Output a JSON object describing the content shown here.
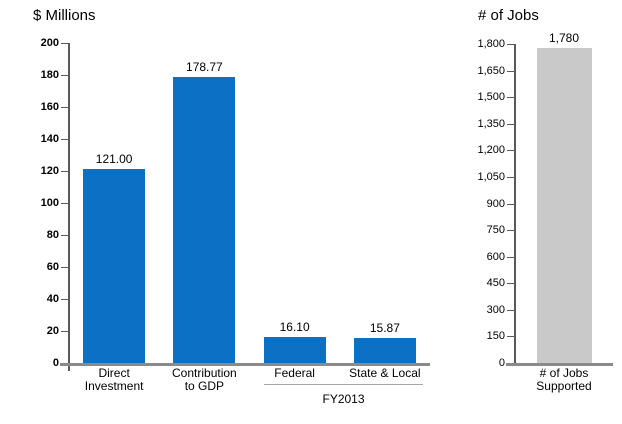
{
  "chart_data": [
    {
      "type": "bar",
      "title": "$ Millions",
      "categories": [
        [
          "Direct",
          "Investment"
        ],
        [
          "Contribution",
          "to GDP"
        ],
        [
          "Federal"
        ],
        [
          "State & Local"
        ]
      ],
      "values": [
        121.0,
        178.77,
        16.1,
        15.87
      ],
      "value_labels": [
        "121.00",
        "178.77",
        "16.10",
        "15.87"
      ],
      "ylim": [
        0,
        200
      ],
      "yticks": [
        0,
        20,
        40,
        60,
        80,
        100,
        120,
        140,
        160,
        180,
        200
      ],
      "ytick_labels": [
        "0",
        "20",
        "40",
        "60",
        "80",
        "100",
        "120",
        "140",
        "160",
        "180",
        "200"
      ],
      "bar_color": "#0c70c4",
      "grid": "off",
      "legend": "none",
      "x_group": {
        "label": "FY2013",
        "categories": [
          "Federal",
          "State & Local"
        ]
      }
    },
    {
      "type": "bar",
      "title": "# of Jobs",
      "categories": [
        [
          "# of Jobs",
          "Supported"
        ]
      ],
      "values": [
        1780
      ],
      "value_labels": [
        "1,780"
      ],
      "ylim": [
        0,
        1800
      ],
      "yticks": [
        0,
        150,
        300,
        450,
        600,
        750,
        900,
        1050,
        1200,
        1350,
        1500,
        1650,
        1800
      ],
      "ytick_labels": [
        "0",
        "150",
        "300",
        "450",
        "600",
        "750",
        "900",
        "1,050",
        "1,200",
        "1,350",
        "1,500",
        "1,650",
        "1,800"
      ],
      "bar_color": "#c9c9c9",
      "grid": "off",
      "legend": "none"
    }
  ],
  "colors": {
    "axis_line": "#595959",
    "baseline": "#8a8a8a",
    "group_underline": "#a6a6a6",
    "text": "#000000"
  }
}
